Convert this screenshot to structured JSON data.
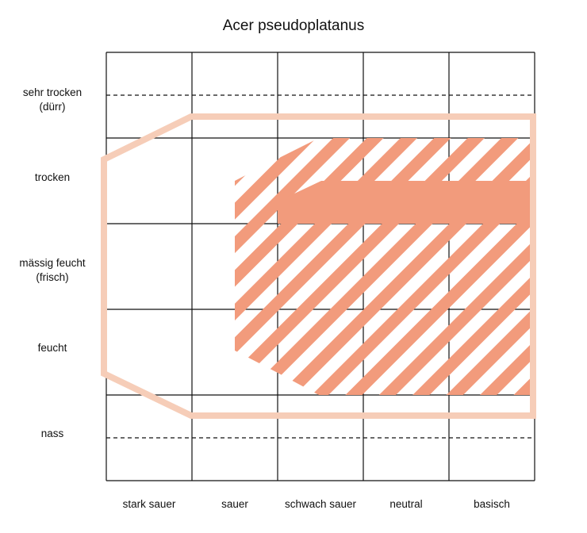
{
  "title": "Acer pseudoplatanus",
  "y_labels": {
    "sehr_trocken": [
      "sehr trocken",
      "(dürr)"
    ],
    "trocken": [
      "trocken"
    ],
    "maessig_feucht": [
      "mässig feucht",
      "(frisch)"
    ],
    "feucht": [
      "feucht"
    ],
    "nass": [
      "nass"
    ]
  },
  "x_labels": [
    "stark sauer",
    "sauer",
    "schwach sauer",
    "neutral",
    "basisch"
  ],
  "colors": {
    "outer_range": "#f6cdb8",
    "optimum_fill": "#f29b7c",
    "hatch": "#f29b7c",
    "grid": "#111111"
  }
}
